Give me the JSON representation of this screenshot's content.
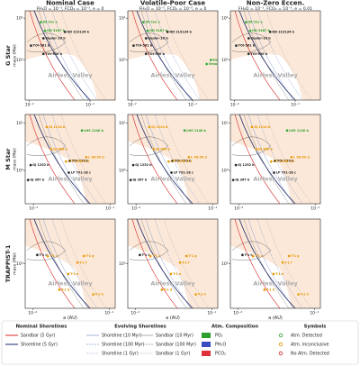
{
  "figure": {
    "row_labels": [
      "G Star",
      "M Star",
      "TRAPPIST-1"
    ],
    "legend": [
      {
        "title": "Nominal Shorelines",
        "items": [
          {
            "label": "Sandbar (5 Gyr)",
            "color": "#d62728",
            "dash": "solid"
          },
          {
            "label": "Shoreline (5 Gyr)",
            "color": "#1f2a6b",
            "dash": "solid"
          }
        ]
      },
      {
        "title": "Evolving Shorelines",
        "items": [
          {
            "label": "Shoreline (10 Myr)",
            "color": "#8fa3d6",
            "dash": "solid"
          },
          {
            "label": "Shoreline (100 Myr)",
            "color": "#8fa3d6",
            "dash": "dashed"
          },
          {
            "label": "Shoreline (1 Gyr)",
            "color": "#8fa3d6",
            "dash": "dotted"
          },
          {
            "label": "Sandbar (10 Myr)",
            "color": "#999999",
            "dash": "solid"
          },
          {
            "label": "Sandbar (100 Myr)",
            "color": "#999999",
            "dash": "dashed"
          },
          {
            "label": "Sandbar (1 Gyr)",
            "color": "#999999",
            "dash": "dotted"
          }
        ]
      },
      {
        "title": "Atm. Composition",
        "items": [
          {
            "label": "PO₂",
            "color": "#2ca02c"
          },
          {
            "label": "PH₂O",
            "color": "#3b4cc0"
          },
          {
            "label": "PCO₂",
            "color": "#e0303a"
          }
        ]
      },
      {
        "title": "Symbols",
        "items": [
          {
            "label": "Atm. Detected",
            "color": "#2ca02c"
          },
          {
            "label": "Atm. Inconclusive",
            "color": "#e69500"
          },
          {
            "label": "No Atm. Detected",
            "color": "#d62728"
          }
        ]
      }
    ]
  },
  "chart_data": [
    {
      "type": "scatter",
      "title": "Nominal Case",
      "subtitle": "FH₂O = 10⁻³, FCO₂ = 10⁻³, e = 0",
      "ylabel": "mass (M⊕)",
      "annotation": "Airless Valley",
      "log": true,
      "xlim": [
        0.0085,
        0.26
      ],
      "ylim": [
        0.11,
        15
      ],
      "xticks": [
        {
          "value": 0.01,
          "label": "10⁻²"
        },
        {
          "value": 0.1,
          "label": "10⁻¹"
        }
      ],
      "yticks": [
        {
          "value": 1,
          "label": "10⁰"
        },
        {
          "value": 10,
          "label": "10¹"
        }
      ],
      "points": {
        "labels": [
          "55 Cnc e",
          "HD 219134 b",
          "HD 3167 b",
          "Kepler-10 b",
          "TOI-561 b",
          "TOI-500 b"
        ],
        "x": [
          0.0154,
          0.0385,
          0.018,
          0.017,
          0.0106,
          0.017
        ],
        "y": [
          8.0,
          4.7,
          5.0,
          3.3,
          2.2,
          1.4
        ],
        "colors": [
          "#2ca02c",
          "#222222",
          "#2ca02c",
          "#222222",
          "#222222",
          "#222222"
        ]
      }
    },
    {
      "type": "scatter",
      "title": "Volatile-Poor Case",
      "subtitle": "FH₂O = 10⁻⁵, FCO₂ = 10⁻⁵, e = 0",
      "annotation": "Airless Valley",
      "log": true,
      "xlim": [
        0.0085,
        0.26
      ],
      "ylim": [
        0.11,
        15
      ],
      "xticks": [
        {
          "value": 0.01,
          "label": "10⁻²"
        },
        {
          "value": 0.1,
          "label": "10⁻¹"
        }
      ],
      "yticks": [
        {
          "value": 1,
          "label": "10⁰"
        },
        {
          "value": 10,
          "label": "10¹"
        }
      ],
      "points": {
        "labels": [
          "55 Cnc e",
          "HD 219134 b",
          "HD 3167 b",
          "Kepler-10 b",
          "TOI-561 b",
          "TOI-500 b",
          "Earth",
          "Venus"
        ],
        "x": [
          0.0154,
          0.0385,
          0.018,
          0.017,
          0.0106,
          0.017,
          0.2,
          0.17
        ],
        "y": [
          8.0,
          4.7,
          5.0,
          3.3,
          2.2,
          1.4,
          1.0,
          0.8
        ],
        "colors": [
          "#2ca02c",
          "#222222",
          "#2ca02c",
          "#222222",
          "#222222",
          "#222222",
          "#2ca02c",
          "#2ca02c"
        ]
      }
    },
    {
      "type": "scatter",
      "title": "Non-Zero Eccen.",
      "subtitle": "FH₂O = 10⁻³, FCO₂ = 10⁻³, e = 0.01",
      "annotation": "Airless Valley",
      "log": true,
      "xlim": [
        0.0085,
        0.26
      ],
      "ylim": [
        0.11,
        15
      ],
      "xticks": [
        {
          "value": 0.01,
          "label": "10⁻²"
        },
        {
          "value": 0.1,
          "label": "10⁻¹"
        }
      ],
      "yticks": [
        {
          "value": 1,
          "label": "10⁰"
        },
        {
          "value": 10,
          "label": "10¹"
        }
      ],
      "points": {
        "labels": [
          "55 Cnc e",
          "HD 219134 b",
          "HD 3167 b",
          "Kepler-10 b",
          "TOI-561 b",
          "TOI-500 b"
        ],
        "x": [
          0.0154,
          0.0385,
          0.018,
          0.017,
          0.0106,
          0.017
        ],
        "y": [
          8.0,
          4.7,
          5.0,
          3.3,
          2.2,
          1.4
        ],
        "colors": [
          "#2ca02c",
          "#222222",
          "#2ca02c",
          "#222222",
          "#222222",
          "#222222"
        ]
      }
    },
    {
      "type": "scatter",
      "ylabel": "mass (M⊕)",
      "annotation": "Airless Valley",
      "log": true,
      "xlim": [
        0.0078,
        0.117
      ],
      "ylim": [
        0.2,
        15
      ],
      "xticks": [
        {
          "value": 0.01,
          "label": "10⁻²"
        },
        {
          "value": 0.1,
          "label": "10⁻¹"
        }
      ],
      "yticks": [
        {
          "value": 1,
          "label": "10⁰"
        },
        {
          "value": 10,
          "label": "10¹"
        }
      ],
      "points": {
        "labels": [
          "GJ 1214 b",
          "LHS 1140 b",
          "GJ 486 b",
          "L 98-59 d",
          "TOI-270 b",
          "LTT 1445 A c",
          "GJ 1252 b",
          "GJ 367 b",
          "LP 791-18 c"
        ],
        "x": [
          0.0149,
          0.043,
          0.017,
          0.049,
          0.03,
          0.0266,
          0.0092,
          0.0085,
          0.029
        ],
        "y": [
          8.2,
          6.9,
          2.8,
          1.9,
          1.6,
          1.54,
          1.3,
          0.63,
          0.9
        ],
        "colors": [
          "#e69500",
          "#2ca02c",
          "#e69500",
          "#e69500",
          "#222222",
          "#e69500",
          "#222222",
          "#222222",
          "#222222"
        ]
      }
    },
    {
      "type": "scatter",
      "annotation": "Airless Valley",
      "log": true,
      "xlim": [
        0.0078,
        0.117
      ],
      "ylim": [
        0.2,
        15
      ],
      "xticks": [
        {
          "value": 0.01,
          "label": "10⁻²"
        },
        {
          "value": 0.1,
          "label": "10⁻¹"
        }
      ],
      "yticks": [
        {
          "value": 1,
          "label": "10⁰"
        },
        {
          "value": 10,
          "label": "10¹"
        }
      ],
      "points": {
        "labels": [
          "GJ 1214 b",
          "LHS 1140 b",
          "GJ 486 b",
          "L 98-59 d",
          "TOI-270 b",
          "LTT 1445 A c",
          "GJ 1252 b",
          "GJ 367 b",
          "LP 791-18 c"
        ],
        "x": [
          0.0149,
          0.043,
          0.017,
          0.049,
          0.03,
          0.0266,
          0.0092,
          0.0085,
          0.029
        ],
        "y": [
          8.2,
          6.9,
          2.8,
          1.9,
          1.6,
          1.54,
          1.3,
          0.63,
          0.9
        ],
        "colors": [
          "#e69500",
          "#2ca02c",
          "#e69500",
          "#e69500",
          "#222222",
          "#e69500",
          "#222222",
          "#222222",
          "#222222"
        ]
      }
    },
    {
      "type": "scatter",
      "annotation": "Airless Valley",
      "log": true,
      "xlim": [
        0.0078,
        0.117
      ],
      "ylim": [
        0.2,
        15
      ],
      "xticks": [
        {
          "value": 0.01,
          "label": "10⁻²"
        },
        {
          "value": 0.1,
          "label": "10⁻¹"
        }
      ],
      "yticks": [
        {
          "value": 1,
          "label": "10⁰"
        },
        {
          "value": 10,
          "label": "10¹"
        }
      ],
      "points": {
        "labels": [
          "GJ 1214 b",
          "LHS 1140 b",
          "GJ 486 b",
          "L 98-59 d",
          "TOI-270 b",
          "LTT 1445 A c",
          "GJ 1252 b",
          "GJ 367 b",
          "LP 791-18 c"
        ],
        "x": [
          0.0149,
          0.043,
          0.017,
          0.049,
          0.03,
          0.0266,
          0.0092,
          0.0085,
          0.029
        ],
        "y": [
          8.2,
          6.9,
          2.8,
          1.9,
          1.6,
          1.54,
          1.3,
          0.63,
          0.9
        ],
        "colors": [
          "#e69500",
          "#2ca02c",
          "#e69500",
          "#e69500",
          "#222222",
          "#e69500",
          "#222222",
          "#222222",
          "#222222"
        ]
      }
    },
    {
      "type": "scatter",
      "ylabel": "mass (M⊕)",
      "xlabel": "a (AU)",
      "annotation": "Airless Valley",
      "log": true,
      "xlim": [
        0.008,
        0.12
      ],
      "ylim": [
        0.2,
        5
      ],
      "xticks": [
        {
          "value": 0.01,
          "label": "10⁻²"
        },
        {
          "value": 0.1,
          "label": "10⁻¹"
        }
      ],
      "yticks": [
        {
          "value": 1,
          "label": "10⁰"
        }
      ],
      "points": {
        "labels": [
          "T-1 b",
          "T-1 c",
          "T-1 d",
          "T-1 e",
          "T-1 f",
          "T-1 g",
          "T-1 h"
        ],
        "x": [
          0.0115,
          0.0158,
          0.0223,
          0.0293,
          0.0385,
          0.0468,
          0.0619
        ],
        "y": [
          1.37,
          1.31,
          0.39,
          0.69,
          1.04,
          1.32,
          0.33
        ],
        "colors": [
          "#222222",
          "#e69500",
          "#e69500",
          "#e69500",
          "#e69500",
          "#e69500",
          "#e69500"
        ]
      }
    },
    {
      "type": "scatter",
      "xlabel": "a (AU)",
      "annotation": "Airless Valley",
      "log": true,
      "xlim": [
        0.008,
        0.12
      ],
      "ylim": [
        0.2,
        5
      ],
      "xticks": [
        {
          "value": 0.01,
          "label": "10⁻²"
        },
        {
          "value": 0.1,
          "label": "10⁻¹"
        }
      ],
      "yticks": [
        {
          "value": 1,
          "label": "10⁰"
        }
      ],
      "points": {
        "labels": [
          "T-1 b",
          "T-1 c",
          "T-1 d",
          "T-1 e",
          "T-1 f",
          "T-1 g",
          "T-1 h"
        ],
        "x": [
          0.0115,
          0.0158,
          0.0223,
          0.0293,
          0.0385,
          0.0468,
          0.0619
        ],
        "y": [
          1.37,
          1.31,
          0.39,
          0.69,
          1.04,
          1.32,
          0.33
        ],
        "colors": [
          "#222222",
          "#e69500",
          "#e69500",
          "#e69500",
          "#e69500",
          "#e69500",
          "#e69500"
        ]
      }
    },
    {
      "type": "scatter",
      "xlabel": "a (AU)",
      "annotation": "Airless Valley",
      "log": true,
      "xlim": [
        0.008,
        0.12
      ],
      "ylim": [
        0.2,
        5
      ],
      "xticks": [
        {
          "value": 0.01,
          "label": "10⁻²"
        },
        {
          "value": 0.1,
          "label": "10⁻¹"
        }
      ],
      "yticks": [
        {
          "value": 1,
          "label": "10⁰"
        }
      ],
      "points": {
        "labels": [
          "T-1 b",
          "T-1 c",
          "T-1 d",
          "T-1 e",
          "T-1 f",
          "T-1 g",
          "T-1 h"
        ],
        "x": [
          0.0115,
          0.0158,
          0.0223,
          0.0293,
          0.0385,
          0.0468,
          0.0619
        ],
        "y": [
          1.37,
          1.31,
          0.39,
          0.69,
          1.04,
          1.32,
          0.33
        ],
        "colors": [
          "#222222",
          "#e69500",
          "#e69500",
          "#e69500",
          "#e69500",
          "#e69500",
          "#e69500"
        ]
      }
    }
  ]
}
